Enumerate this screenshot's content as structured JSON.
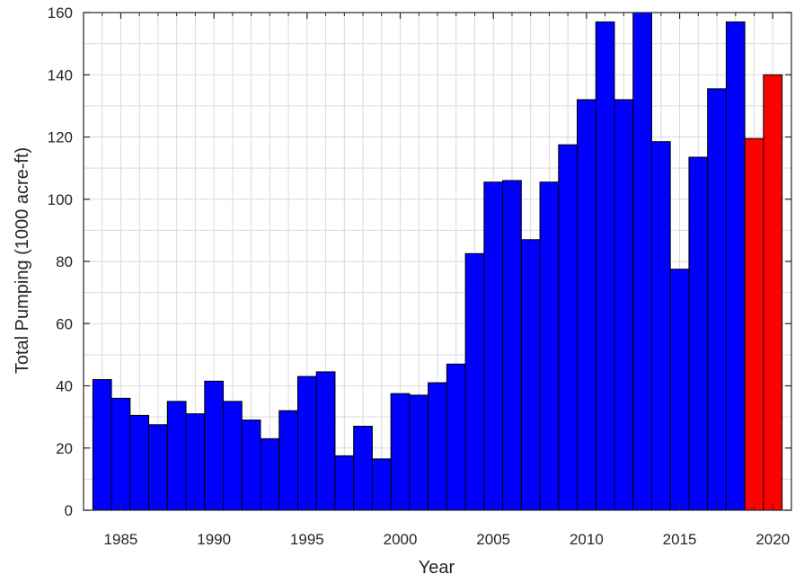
{
  "chart_data": {
    "type": "bar",
    "title": "",
    "xlabel": "Year",
    "ylabel": "Total Pumping (1000 acre-ft)",
    "xlim": [
      1983,
      2021
    ],
    "ylim": [
      0,
      160
    ],
    "x_ticks": [
      1985,
      1990,
      1995,
      2000,
      2005,
      2010,
      2015,
      2020
    ],
    "y_ticks": [
      0,
      20,
      40,
      60,
      80,
      100,
      120,
      140,
      160
    ],
    "grid": true,
    "legend": "none",
    "colors": {
      "historical": "#0000ff",
      "projected": "#ff0000",
      "edge": "#000000",
      "grid": "#d9d9d9"
    },
    "series": [
      {
        "color_key": "historical",
        "x": [
          1984,
          1985,
          1986,
          1987,
          1988,
          1989,
          1990,
          1991,
          1992,
          1993,
          1994,
          1995,
          1996,
          1997,
          1998,
          1999,
          2000,
          2001,
          2002,
          2003,
          2004,
          2005,
          2006,
          2007,
          2008,
          2009,
          2010,
          2011,
          2012,
          2013,
          2014,
          2015,
          2016,
          2017,
          2018
        ],
        "values": [
          42,
          36,
          30.5,
          27.5,
          35,
          31,
          41.5,
          35,
          29,
          23,
          32,
          43,
          44.5,
          17.5,
          27,
          16.5,
          37.5,
          37,
          41,
          47,
          82.5,
          105.5,
          106,
          87,
          105.5,
          117.5,
          132,
          157,
          132,
          160,
          118.5,
          77.5,
          113.5,
          135.5,
          157
        ]
      },
      {
        "color_key": "projected",
        "x": [
          2019,
          2020
        ],
        "values": [
          119.5,
          140
        ]
      }
    ]
  }
}
